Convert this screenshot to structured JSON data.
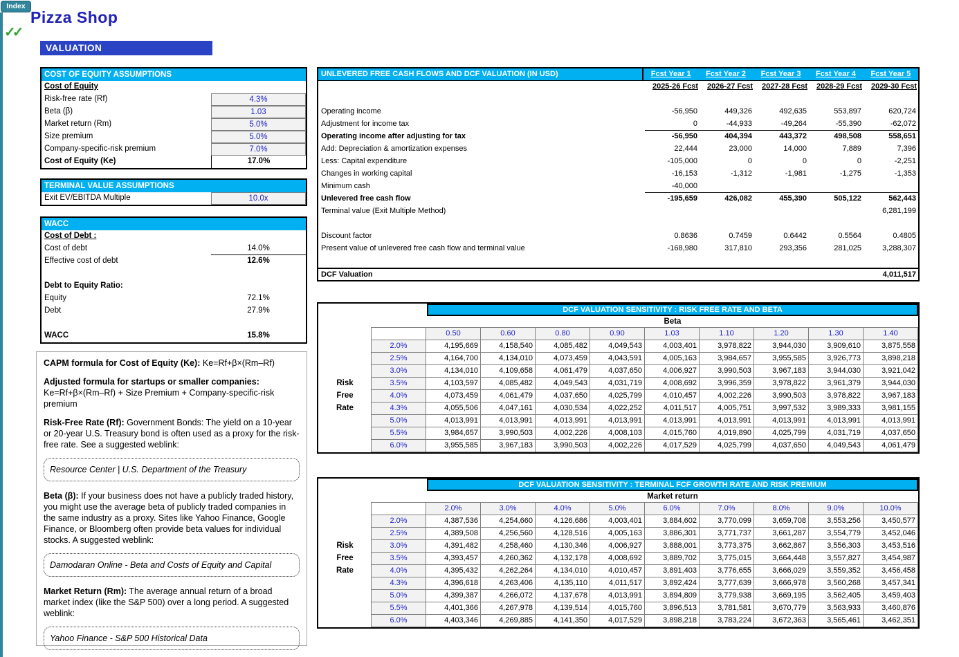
{
  "colors": {
    "cyan": "#00B0F0",
    "banner-blue": "#2A43C4",
    "title-blue": "#2121B5",
    "teal": "#31859C",
    "green": "#2DA32D",
    "input-blue": "#2222CC"
  },
  "page": {
    "index_button": "Index",
    "checkmarks": "✓✓",
    "title": "Pizza Shop",
    "section_banner": "VALUATION"
  },
  "cost_of_equity": {
    "header": "COST OF EQUITY ASSUMPTIONS",
    "rows": [
      {
        "name": "cost-of-equity-subheader",
        "label": "Cost of Equity",
        "label_bold": true,
        "label_underline": true
      },
      {
        "name": "risk-free-rate",
        "label": "Risk-free rate (Rf)",
        "value": "4.3%",
        "input": true
      },
      {
        "name": "beta",
        "label": "Beta (β)",
        "value": "1.03",
        "input": true
      },
      {
        "name": "market-return",
        "label": "Market return (Rm)",
        "value": "5.0%",
        "input": true
      },
      {
        "name": "size-premium",
        "label": "Size premium",
        "value": "5.0%",
        "input": true
      },
      {
        "name": "company-specific-risk-premium",
        "label": "Company-specific-risk premium",
        "value": "7.0%",
        "input": true
      },
      {
        "name": "cost-of-equity-ke",
        "label": "Cost of Equity (Ke)",
        "label_bold": true,
        "value": "17.0%",
        "value_bold": true,
        "value_border_left": true
      }
    ]
  },
  "terminal_value": {
    "header": "TERMINAL VALUE ASSUMPTIONS",
    "rows": [
      {
        "name": "exit-ev-ebitda-multiple",
        "label": "Exit EV/EBITDA Multiple",
        "value": "10.0x",
        "input": true
      }
    ]
  },
  "wacc": {
    "header": "WACC",
    "rows": [
      {
        "name": "cost-of-debt-subheader",
        "label": "Cost of Debt :",
        "label_bold": true,
        "label_underline": true
      },
      {
        "name": "cost-of-debt",
        "label": "Cost of debt",
        "value": "14.0%",
        "value_rule": true
      },
      {
        "name": "effective-cost-of-debt",
        "label": "Effective cost of debt",
        "value": "12.6%",
        "value_bold": true
      },
      {
        "name": "wacc-blank-1",
        "label": ""
      },
      {
        "name": "debt-to-equity-ratio",
        "label": "Debt to Equity Ratio:",
        "label_bold": true
      },
      {
        "name": "equity",
        "label": "Equity",
        "value": "72.1%"
      },
      {
        "name": "debt",
        "label": "Debt",
        "value": "27.9%"
      },
      {
        "name": "wacc-blank-2",
        "label": ""
      },
      {
        "name": "wacc-total",
        "label": "WACC",
        "label_bold": true,
        "value": "15.8%",
        "value_bold": true
      }
    ]
  },
  "notes": {
    "capm_title_bold": "CAPM formula for Cost of Equity (Ke):",
    "capm_formula": "  Ke=Rf+β×(Rm–Rf)",
    "adjusted_title": "Adjusted formula for startups or smaller companies:",
    "adjusted_formula": "Ke=Rf+β×(Rm–Rf) + Size Premium + Company-specific-risk premium",
    "rf_bold": "Risk-Free Rate (Rf):",
    "rf_text": " Government Bonds: The yield on a 10-year or 20-year U.S. Treasury bond is often used as a proxy for the risk-free rate. See a suggested weblink:",
    "link1": "Resource Center | U.S. Department of the Treasury",
    "beta_bold": "Beta (β):",
    "beta_text": " If your business does not have a publicly traded history, you might use the average beta of publicly traded companies in the same industry as a proxy. Sites like Yahoo Finance, Google Finance, or Bloomberg often provide beta values for individual stocks. A suggested weblink:",
    "link2": "Damodaran Online - Beta and Costs of Equity and Capital",
    "rm_bold": "Market Return (Rm):",
    "rm_text": " The average annual return of a broad market index (like the S&P 500) over a long period. A suggested weblink:",
    "link3": "Yahoo Finance - S&P 500 Historical Data"
  },
  "dcf": {
    "header": "UNLEVERED FREE CASH FLOWS AND DCF VALUATION (IN USD)",
    "year_links": [
      "Fcst Year 1",
      "Fcst Year 2",
      "Fcst Year 3",
      "Fcst Year 4",
      "Fcst Year 5"
    ],
    "year_labels": [
      "2025-26 Fcst",
      "2026-27 Fcst",
      "2027-28 Fcst",
      "2028-29 Fcst",
      "2029-30 Fcst"
    ],
    "rows": [
      {
        "name": "dcf-blank-top",
        "label": "",
        "values": [
          "",
          "",
          "",
          "",
          ""
        ]
      },
      {
        "name": "operating-income",
        "label": "Operating income",
        "values": [
          "-56,950",
          "449,326",
          "492,635",
          "553,897",
          "620,724"
        ]
      },
      {
        "name": "adjustment-for-income-tax",
        "label": "Adjustment for income tax",
        "values": [
          "0",
          "-44,933",
          "-49,264",
          "-55,390",
          "-62,072"
        ],
        "rule_below": true
      },
      {
        "name": "operating-income-after-tax",
        "label": "Operating income after adjusting for tax",
        "values": [
          "-56,950",
          "404,394",
          "443,372",
          "498,508",
          "558,651"
        ],
        "bold": true
      },
      {
        "name": "depreciation-amortization",
        "label": "Add: Depreciation & amortization expenses",
        "values": [
          "22,444",
          "23,000",
          "14,000",
          "7,889",
          "7,396"
        ]
      },
      {
        "name": "capital-expenditure",
        "label": "Less: Capital expenditure",
        "values": [
          "-105,000",
          "0",
          "0",
          "0",
          "-2,251"
        ]
      },
      {
        "name": "changes-in-working-capital",
        "label": "Changes in working capital",
        "values": [
          "-16,153",
          "-1,312",
          "-1,981",
          "-1,275",
          "-1,353"
        ]
      },
      {
        "name": "minimum-cash",
        "label": "Minimum cash",
        "values": [
          "-40,000",
          "",
          "",
          "",
          ""
        ],
        "rule_below": true
      },
      {
        "name": "unlevered-free-cash-flow",
        "label": "Unlevered free cash flow",
        "values": [
          "-195,659",
          "426,082",
          "455,390",
          "505,122",
          "562,443"
        ],
        "bold": true
      },
      {
        "name": "terminal-value",
        "label": "Terminal value (Exit Multiple Method)",
        "values": [
          "",
          "",
          "",
          "",
          "6,281,199"
        ]
      },
      {
        "name": "dcf-blank-mid",
        "label": "",
        "values": [
          "",
          "",
          "",
          "",
          ""
        ]
      },
      {
        "name": "discount-factor",
        "label": "Discount factor",
        "values": [
          "0.8636",
          "0.7459",
          "0.6442",
          "0.5564",
          "0.4805"
        ]
      },
      {
        "name": "present-value-ufcf-tv",
        "label": "Present value of unlevered free cash flow and terminal value",
        "values": [
          "-168,980",
          "317,810",
          "293,356",
          "281,025",
          "3,288,307"
        ]
      },
      {
        "name": "dcf-blank-bottom",
        "label": "",
        "values": [
          "",
          "",
          "",
          "",
          ""
        ]
      }
    ],
    "total": {
      "label": "DCF Valuation",
      "value": "4,011,517"
    }
  },
  "sensitivity1": {
    "header": "DCF VALUATION SENSITIVITY : RISK FREE RATE AND BETA",
    "col_axis": "Beta",
    "row_axis_words": [
      "Risk",
      "Free",
      "Rate"
    ],
    "row_axis_start": 3,
    "col_headers": [
      "0.50",
      "0.60",
      "0.80",
      "0.90",
      "1.03",
      "1.10",
      "1.20",
      "1.30",
      "1.40"
    ],
    "row_headers": [
      "2.0%",
      "2.5%",
      "3.0%",
      "3.5%",
      "4.0%",
      "4.3%",
      "5.0%",
      "5.5%",
      "6.0%"
    ],
    "values": [
      [
        "4,195,669",
        "4,158,540",
        "4,085,482",
        "4,049,543",
        "4,003,401",
        "3,978,822",
        "3,944,030",
        "3,909,610",
        "3,875,558"
      ],
      [
        "4,164,700",
        "4,134,010",
        "4,073,459",
        "4,043,591",
        "4,005,163",
        "3,984,657",
        "3,955,585",
        "3,926,773",
        "3,898,218"
      ],
      [
        "4,134,010",
        "4,109,658",
        "4,061,479",
        "4,037,650",
        "4,006,927",
        "3,990,503",
        "3,967,183",
        "3,944,030",
        "3,921,042"
      ],
      [
        "4,103,597",
        "4,085,482",
        "4,049,543",
        "4,031,719",
        "4,008,692",
        "3,996,359",
        "3,978,822",
        "3,961,379",
        "3,944,030"
      ],
      [
        "4,073,459",
        "4,061,479",
        "4,037,650",
        "4,025,799",
        "4,010,457",
        "4,002,226",
        "3,990,503",
        "3,978,822",
        "3,967,183"
      ],
      [
        "4,055,506",
        "4,047,161",
        "4,030,534",
        "4,022,252",
        "4,011,517",
        "4,005,751",
        "3,997,532",
        "3,989,333",
        "3,981,155"
      ],
      [
        "4,013,991",
        "4,013,991",
        "4,013,991",
        "4,013,991",
        "4,013,991",
        "4,013,991",
        "4,013,991",
        "4,013,991",
        "4,013,991"
      ],
      [
        "3,984,657",
        "3,990,503",
        "4,002,226",
        "4,008,103",
        "4,015,760",
        "4,019,890",
        "4,025,799",
        "4,031,719",
        "4,037,650"
      ],
      [
        "3,955,585",
        "3,967,183",
        "3,990,503",
        "4,002,226",
        "4,017,529",
        "4,025,799",
        "4,037,650",
        "4,049,543",
        "4,061,479"
      ]
    ]
  },
  "sensitivity2": {
    "header": "DCF VALUATION SENSITIVITY : TERMINAL FCF GROWTH RATE AND RISK PREMIUM",
    "col_axis": "Market return",
    "row_axis_words": [
      "Risk",
      "Free",
      "Rate"
    ],
    "row_axis_start": 2,
    "col_headers": [
      "2.0%",
      "3.0%",
      "4.0%",
      "5.0%",
      "6.0%",
      "7.0%",
      "8.0%",
      "9.0%",
      "10.0%"
    ],
    "row_headers": [
      "2.0%",
      "2.5%",
      "3.0%",
      "3.5%",
      "4.0%",
      "4.3%",
      "5.0%",
      "5.5%",
      "6.0%"
    ],
    "values": [
      [
        "4,387,536",
        "4,254,660",
        "4,126,686",
        "4,003,401",
        "3,884,602",
        "3,770,099",
        "3,659,708",
        "3,553,256",
        "3,450,577"
      ],
      [
        "4,389,508",
        "4,256,560",
        "4,128,516",
        "4,005,163",
        "3,886,301",
        "3,771,737",
        "3,661,287",
        "3,554,779",
        "3,452,046"
      ],
      [
        "4,391,482",
        "4,258,460",
        "4,130,346",
        "4,006,927",
        "3,888,001",
        "3,773,375",
        "3,662,867",
        "3,556,303",
        "3,453,516"
      ],
      [
        "4,393,457",
        "4,260,362",
        "4,132,178",
        "4,008,692",
        "3,889,702",
        "3,775,015",
        "3,664,448",
        "3,557,827",
        "3,454,987"
      ],
      [
        "4,395,432",
        "4,262,264",
        "4,134,010",
        "4,010,457",
        "3,891,403",
        "3,776,655",
        "3,666,029",
        "3,559,352",
        "3,456,458"
      ],
      [
        "4,396,618",
        "4,263,406",
        "4,135,110",
        "4,011,517",
        "3,892,424",
        "3,777,639",
        "3,666,978",
        "3,560,268",
        "3,457,341"
      ],
      [
        "4,399,387",
        "4,266,072",
        "4,137,678",
        "4,013,991",
        "3,894,809",
        "3,779,938",
        "3,669,195",
        "3,562,405",
        "3,459,403"
      ],
      [
        "4,401,366",
        "4,267,978",
        "4,139,514",
        "4,015,760",
        "3,896,513",
        "3,781,581",
        "3,670,779",
        "3,563,933",
        "3,460,876"
      ],
      [
        "4,403,346",
        "4,269,885",
        "4,141,350",
        "4,017,529",
        "3,898,218",
        "3,783,224",
        "3,672,363",
        "3,565,461",
        "3,462,351"
      ]
    ]
  }
}
